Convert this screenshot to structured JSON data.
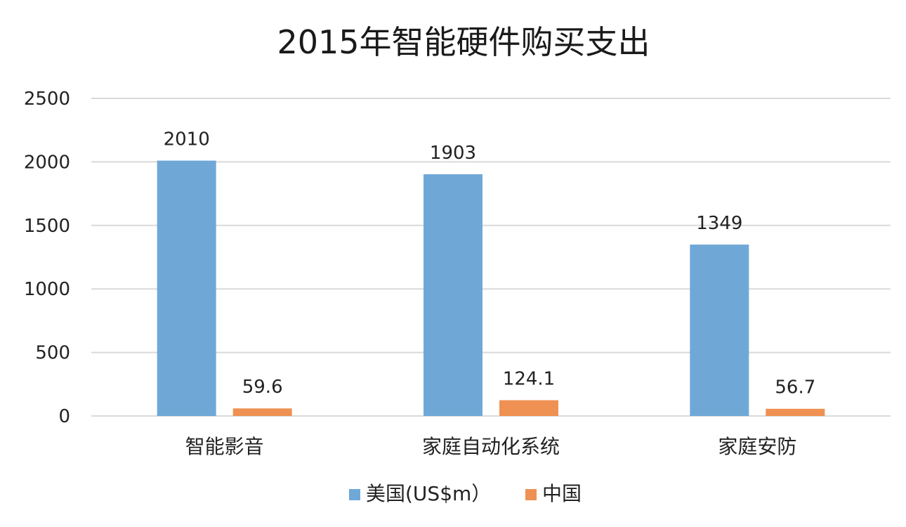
{
  "chart_data": {
    "type": "bar",
    "title": "2015年智能硬件购买支出",
    "categories": [
      "智能影音",
      "家庭自动化系统",
      "家庭安防"
    ],
    "series": [
      {
        "name": "美国(US$m）",
        "values": [
          2010,
          1903,
          1349
        ],
        "value_labels": [
          "2010",
          "1903",
          "1349"
        ],
        "color": "#6fa8d6"
      },
      {
        "name": "中国",
        "values": [
          59.6,
          124.1,
          56.7
        ],
        "value_labels": [
          "59.6",
          "124.1",
          "56.7"
        ],
        "color": "#ef9152"
      }
    ],
    "ylim": [
      0,
      2500
    ],
    "yticks": [
      0,
      500,
      1000,
      1500,
      2000,
      2500
    ],
    "ytick_labels": [
      "0",
      "500",
      "1000",
      "1500",
      "2000",
      "2500"
    ],
    "grid": true,
    "legend_position": "bottom"
  }
}
